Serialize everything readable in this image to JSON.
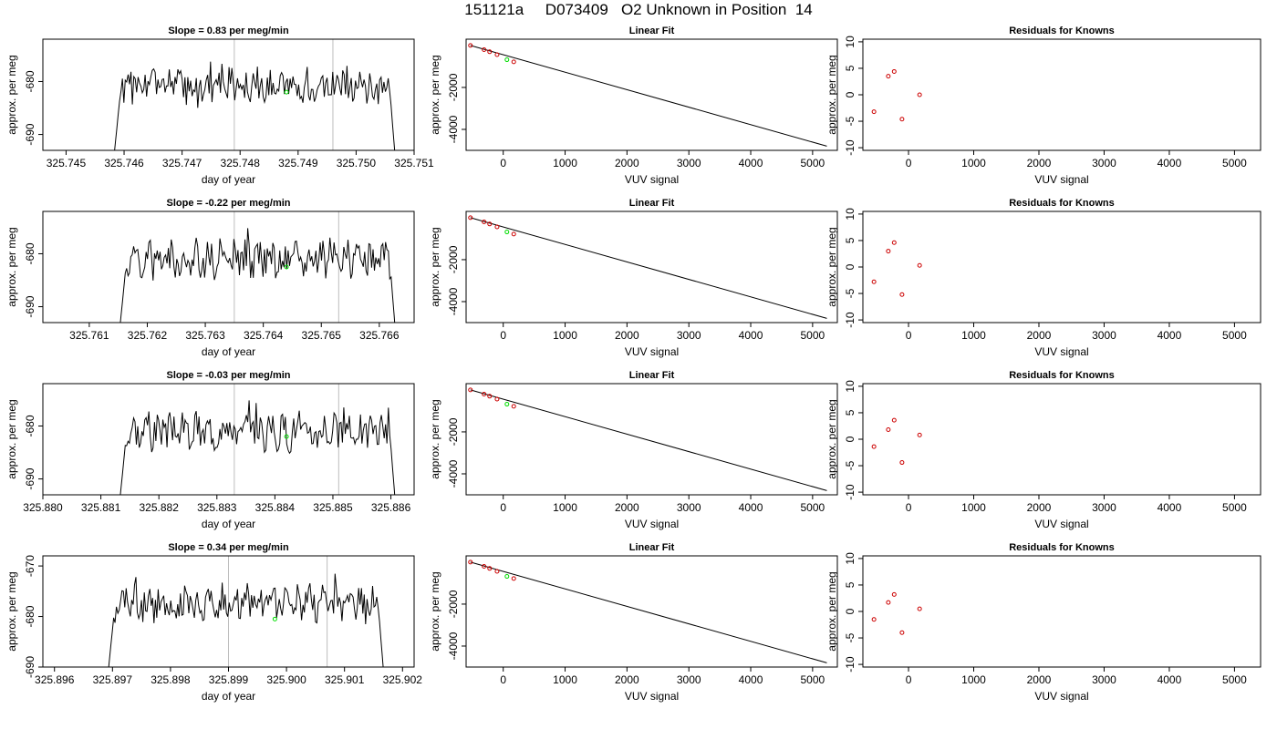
{
  "figure": {
    "title": "151121a     D073409   O2 Unknown in Position  14",
    "colors": {
      "frame": "#000000",
      "vline": "#bdbdbd",
      "known": "#cc0000",
      "unknown": "#00dd00",
      "fit": "#000000"
    }
  },
  "chart_data": [
    {
      "type": "line",
      "title": "Slope =  0.83  per meg/min",
      "xlabel": "day of year",
      "ylabel": "approx. per meg",
      "xlim": [
        325.7446,
        325.751
      ],
      "ylim": [
        -693,
        -672
      ],
      "xticks": [
        "325.745",
        "325.746",
        "325.747",
        "325.748",
        "325.749",
        "325.750",
        "325.751"
      ],
      "yticks": [
        "-690",
        "-680"
      ],
      "vlines": [
        325.7479,
        325.7496
      ],
      "series_start": 325.7458,
      "series_end": 325.7507,
      "series_seed": 1,
      "unknown_point": [
        325.7488,
        -682.0
      ]
    },
    {
      "type": "scatter",
      "title": "Linear Fit",
      "xlabel": "VUV signal",
      "ylabel": "approx. per meg",
      "xlim": [
        -600,
        5400
      ],
      "ylim": [
        -5000,
        300
      ],
      "xticks": [
        "0",
        "1000",
        "2000",
        "3000",
        "4000",
        "5000"
      ],
      "yticks": [
        "-4000",
        "-2000"
      ],
      "known_points": [
        [
          -530,
          0
        ],
        [
          -310,
          -200
        ],
        [
          -220,
          -300
        ],
        [
          -100,
          -440
        ],
        [
          170,
          -780
        ]
      ],
      "unknown_point": [
        60,
        -680
      ],
      "fit_line": [
        [
          -530,
          0
        ],
        [
          5230,
          -4800
        ]
      ]
    },
    {
      "type": "scatter",
      "title": "Residuals for Knowns",
      "xlabel": "VUV signal",
      "ylabel": "approx. per meg",
      "xlim": [
        -700,
        5400
      ],
      "ylim": [
        -10.5,
        10.5
      ],
      "xticks": [
        "0",
        "1000",
        "2000",
        "3000",
        "4000",
        "5000"
      ],
      "yticks": [
        "-10",
        "-5",
        "0",
        "5",
        "10"
      ],
      "known_points": [
        [
          -530,
          -3.2
        ],
        [
          -310,
          3.5
        ],
        [
          -220,
          4.4
        ],
        [
          -100,
          -4.6
        ],
        [
          170,
          0.0
        ]
      ]
    },
    {
      "type": "line",
      "title": "Slope =  -0.22  per meg/min",
      "xlabel": "day of year",
      "ylabel": "approx. per meg",
      "xlim": [
        325.7602,
        325.7666
      ],
      "ylim": [
        -693,
        -672
      ],
      "xticks": [
        "325.761",
        "325.762",
        "325.763",
        "325.764",
        "325.765",
        "325.766"
      ],
      "yticks": [
        "-690",
        "-680"
      ],
      "vlines": [
        325.7635,
        325.7653
      ],
      "series_start": 325.7615,
      "series_end": 325.7663,
      "series_seed": 2,
      "unknown_point": [
        325.7644,
        -682.5
      ]
    },
    {
      "type": "scatter",
      "title": "Linear Fit",
      "xlabel": "VUV signal",
      "ylabel": "approx. per meg",
      "xlim": [
        -600,
        5400
      ],
      "ylim": [
        -5000,
        300
      ],
      "xticks": [
        "0",
        "1000",
        "2000",
        "3000",
        "4000",
        "5000"
      ],
      "yticks": [
        "-4000",
        "-2000"
      ],
      "known_points": [
        [
          -530,
          0
        ],
        [
          -310,
          -200
        ],
        [
          -220,
          -300
        ],
        [
          -100,
          -440
        ],
        [
          170,
          -780
        ]
      ],
      "unknown_point": [
        60,
        -680
      ],
      "fit_line": [
        [
          -530,
          0
        ],
        [
          5230,
          -4800
        ]
      ]
    },
    {
      "type": "scatter",
      "title": "Residuals for Knowns",
      "xlabel": "VUV signal",
      "ylabel": "approx. per meg",
      "xlim": [
        -700,
        5400
      ],
      "ylim": [
        -10.5,
        10.5
      ],
      "xticks": [
        "0",
        "1000",
        "2000",
        "3000",
        "4000",
        "5000"
      ],
      "yticks": [
        "-10",
        "-5",
        "0",
        "5",
        "10"
      ],
      "known_points": [
        [
          -530,
          -2.8
        ],
        [
          -310,
          3.0
        ],
        [
          -220,
          4.6
        ],
        [
          -100,
          -5.2
        ],
        [
          170,
          0.3
        ]
      ]
    },
    {
      "type": "line",
      "title": "Slope =  -0.03  per meg/min",
      "xlabel": "day of year",
      "ylabel": "approx. per meg",
      "xlim": [
        325.88,
        325.8864
      ],
      "ylim": [
        -693,
        -672
      ],
      "xticks": [
        "325.880",
        "325.881",
        "325.882",
        "325.883",
        "325.884",
        "325.885",
        "325.886"
      ],
      "yticks": [
        "-690",
        "-680"
      ],
      "vlines": [
        325.8833,
        325.8851
      ],
      "series_start": 325.8813,
      "series_end": 325.8861,
      "series_seed": 3,
      "unknown_point": [
        325.8842,
        -682.0
      ]
    },
    {
      "type": "scatter",
      "title": "Linear Fit",
      "xlabel": "VUV signal",
      "ylabel": "approx. per meg",
      "xlim": [
        -600,
        5400
      ],
      "ylim": [
        -5000,
        300
      ],
      "xticks": [
        "0",
        "1000",
        "2000",
        "3000",
        "4000",
        "5000"
      ],
      "yticks": [
        "-4000",
        "-2000"
      ],
      "known_points": [
        [
          -530,
          0
        ],
        [
          -310,
          -200
        ],
        [
          -220,
          -300
        ],
        [
          -100,
          -440
        ],
        [
          170,
          -780
        ]
      ],
      "unknown_point": [
        60,
        -680
      ],
      "fit_line": [
        [
          -530,
          0
        ],
        [
          5230,
          -4800
        ]
      ]
    },
    {
      "type": "scatter",
      "title": "Residuals for Knowns",
      "xlabel": "VUV signal",
      "ylabel": "approx. per meg",
      "xlim": [
        -700,
        5400
      ],
      "ylim": [
        -10.5,
        10.5
      ],
      "xticks": [
        "0",
        "1000",
        "2000",
        "3000",
        "4000",
        "5000"
      ],
      "yticks": [
        "-10",
        "-5",
        "0",
        "5",
        "10"
      ],
      "known_points": [
        [
          -530,
          -1.4
        ],
        [
          -310,
          1.8
        ],
        [
          -220,
          3.6
        ],
        [
          -100,
          -4.4
        ],
        [
          170,
          0.8
        ]
      ]
    },
    {
      "type": "line",
      "title": "Slope =  0.34  per meg/min",
      "xlabel": "day of year",
      "ylabel": "approx. per meg",
      "xlim": [
        325.8958,
        325.9022
      ],
      "ylim": [
        -690,
        -668
      ],
      "xticks": [
        "325.896",
        "325.897",
        "325.898",
        "325.899",
        "325.900",
        "325.901",
        "325.902"
      ],
      "yticks": [
        "-690",
        "-680",
        "-670"
      ],
      "vlines": [
        325.899,
        325.9007
      ],
      "series_start": 325.8969,
      "series_end": 325.9017,
      "series_seed": 4,
      "unknown_point": [
        325.8998,
        -680.5
      ]
    },
    {
      "type": "scatter",
      "title": "Linear Fit",
      "xlabel": "VUV signal",
      "ylabel": "approx. per meg",
      "xlim": [
        -600,
        5400
      ],
      "ylim": [
        -5000,
        300
      ],
      "xticks": [
        "0",
        "1000",
        "2000",
        "3000",
        "4000",
        "5000"
      ],
      "yticks": [
        "-4000",
        "-2000"
      ],
      "known_points": [
        [
          -530,
          0
        ],
        [
          -310,
          -200
        ],
        [
          -220,
          -300
        ],
        [
          -100,
          -440
        ],
        [
          170,
          -780
        ]
      ],
      "unknown_point": [
        60,
        -680
      ],
      "fit_line": [
        [
          -530,
          0
        ],
        [
          5230,
          -4800
        ]
      ]
    },
    {
      "type": "scatter",
      "title": "Residuals for Knowns",
      "xlabel": "VUV signal",
      "ylabel": "approx. per meg",
      "xlim": [
        -700,
        5400
      ],
      "ylim": [
        -10.5,
        10.5
      ],
      "xticks": [
        "0",
        "1000",
        "2000",
        "3000",
        "4000",
        "5000"
      ],
      "yticks": [
        "-10",
        "-5",
        "0",
        "5",
        "10"
      ],
      "known_points": [
        [
          -530,
          -1.5
        ],
        [
          -310,
          1.7
        ],
        [
          -220,
          3.2
        ],
        [
          -100,
          -4.0
        ],
        [
          170,
          0.5
        ]
      ]
    }
  ]
}
